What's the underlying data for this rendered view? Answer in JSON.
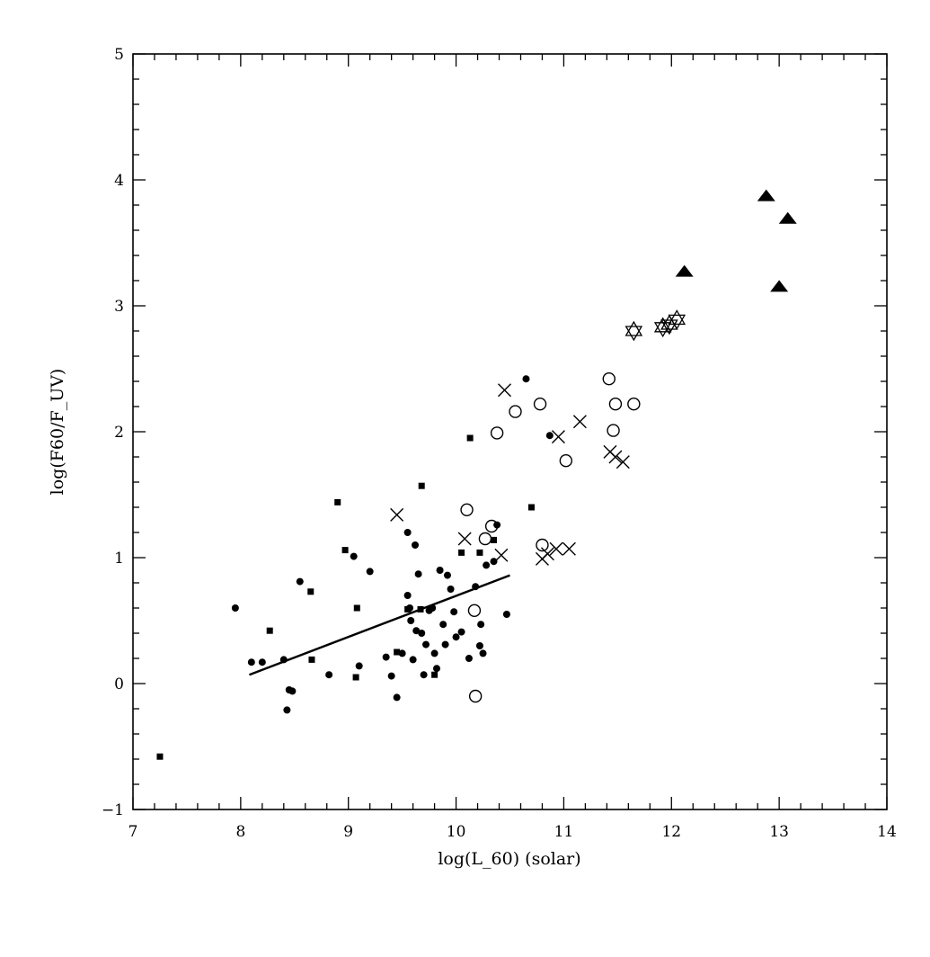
{
  "chart_data": {
    "type": "scatter",
    "title": "",
    "xlabel": "log(L_60) (solar)",
    "ylabel": "log(F60/F_UV)",
    "xlim": [
      7,
      14
    ],
    "ylim": [
      -1,
      5
    ],
    "xticks": [
      "7",
      "8",
      "9",
      "10",
      "11",
      "12",
      "13",
      "14"
    ],
    "yticks": [
      "−1",
      "0",
      "1",
      "2",
      "3",
      "4",
      "5"
    ],
    "grid": false,
    "series": [
      {
        "marker": "filled-circle",
        "points": [
          [
            7.95,
            0.6
          ],
          [
            8.1,
            0.17
          ],
          [
            8.2,
            0.17
          ],
          [
            8.4,
            0.19
          ],
          [
            8.45,
            -0.05
          ],
          [
            8.48,
            -0.06
          ],
          [
            8.43,
            -0.21
          ],
          [
            8.55,
            0.81
          ],
          [
            8.82,
            0.07
          ],
          [
            9.05,
            1.01
          ],
          [
            9.1,
            0.14
          ],
          [
            9.2,
            0.89
          ],
          [
            9.35,
            0.21
          ],
          [
            9.4,
            0.06
          ],
          [
            9.45,
            -0.11
          ],
          [
            9.5,
            0.24
          ],
          [
            9.55,
            1.2
          ],
          [
            9.55,
            0.7
          ],
          [
            9.57,
            0.6
          ],
          [
            9.58,
            0.5
          ],
          [
            9.6,
            0.19
          ],
          [
            9.62,
            1.1
          ],
          [
            9.63,
            0.42
          ],
          [
            9.65,
            0.87
          ],
          [
            9.68,
            0.4
          ],
          [
            9.7,
            0.07
          ],
          [
            9.72,
            0.31
          ],
          [
            9.75,
            0.58
          ],
          [
            9.78,
            0.6
          ],
          [
            9.8,
            0.24
          ],
          [
            9.82,
            0.12
          ],
          [
            9.85,
            0.9
          ],
          [
            9.88,
            0.47
          ],
          [
            9.9,
            0.31
          ],
          [
            9.92,
            0.86
          ],
          [
            9.95,
            0.75
          ],
          [
            9.98,
            0.57
          ],
          [
            10.0,
            0.37
          ],
          [
            10.05,
            0.41
          ],
          [
            10.12,
            0.2
          ],
          [
            10.18,
            0.77
          ],
          [
            10.22,
            0.3
          ],
          [
            10.23,
            0.47
          ],
          [
            10.25,
            0.24
          ],
          [
            10.28,
            0.94
          ],
          [
            10.35,
            0.97
          ],
          [
            10.38,
            1.26
          ],
          [
            10.47,
            0.55
          ],
          [
            10.65,
            2.42
          ],
          [
            10.87,
            1.97
          ]
        ]
      },
      {
        "marker": "filled-square",
        "points": [
          [
            7.25,
            -0.58
          ],
          [
            8.27,
            0.42
          ],
          [
            8.65,
            0.73
          ],
          [
            8.66,
            0.19
          ],
          [
            8.9,
            1.44
          ],
          [
            8.97,
            1.06
          ],
          [
            9.07,
            0.05
          ],
          [
            9.08,
            0.6
          ],
          [
            9.45,
            0.25
          ],
          [
            9.55,
            0.59
          ],
          [
            9.67,
            0.59
          ],
          [
            9.68,
            1.57
          ],
          [
            9.8,
            0.07
          ],
          [
            10.05,
            1.04
          ],
          [
            10.13,
            1.95
          ],
          [
            10.22,
            1.04
          ],
          [
            10.35,
            1.14
          ],
          [
            10.7,
            1.4
          ]
        ]
      },
      {
        "marker": "open-circle",
        "points": [
          [
            10.1,
            1.38
          ],
          [
            10.17,
            0.58
          ],
          [
            10.18,
            -0.1
          ],
          [
            10.27,
            1.15
          ],
          [
            10.33,
            1.25
          ],
          [
            10.38,
            1.99
          ],
          [
            10.55,
            2.16
          ],
          [
            10.78,
            2.22
          ],
          [
            10.8,
            1.1
          ],
          [
            11.02,
            1.77
          ],
          [
            11.42,
            2.42
          ],
          [
            11.46,
            2.01
          ],
          [
            11.48,
            2.22
          ],
          [
            11.65,
            2.22
          ]
        ]
      },
      {
        "marker": "cross",
        "points": [
          [
            9.45,
            1.34
          ],
          [
            10.08,
            1.15
          ],
          [
            10.42,
            1.02
          ],
          [
            10.45,
            2.33
          ],
          [
            10.8,
            0.99
          ],
          [
            10.85,
            1.03
          ],
          [
            10.93,
            1.07
          ],
          [
            10.95,
            1.96
          ],
          [
            11.05,
            1.07
          ],
          [
            11.15,
            2.08
          ],
          [
            11.43,
            1.84
          ],
          [
            11.48,
            1.8
          ],
          [
            11.55,
            1.76
          ]
        ]
      },
      {
        "marker": "star-of-david",
        "points": [
          [
            11.65,
            2.8
          ],
          [
            11.92,
            2.83
          ],
          [
            11.98,
            2.85
          ],
          [
            12.05,
            2.89
          ]
        ]
      },
      {
        "marker": "filled-triangle",
        "points": [
          [
            12.12,
            3.26
          ],
          [
            12.88,
            3.86
          ],
          [
            13.0,
            3.14
          ],
          [
            13.08,
            3.68
          ]
        ]
      }
    ],
    "fit_line": {
      "x": [
        8.08,
        10.5
      ],
      "y": [
        0.07,
        0.86
      ]
    }
  }
}
